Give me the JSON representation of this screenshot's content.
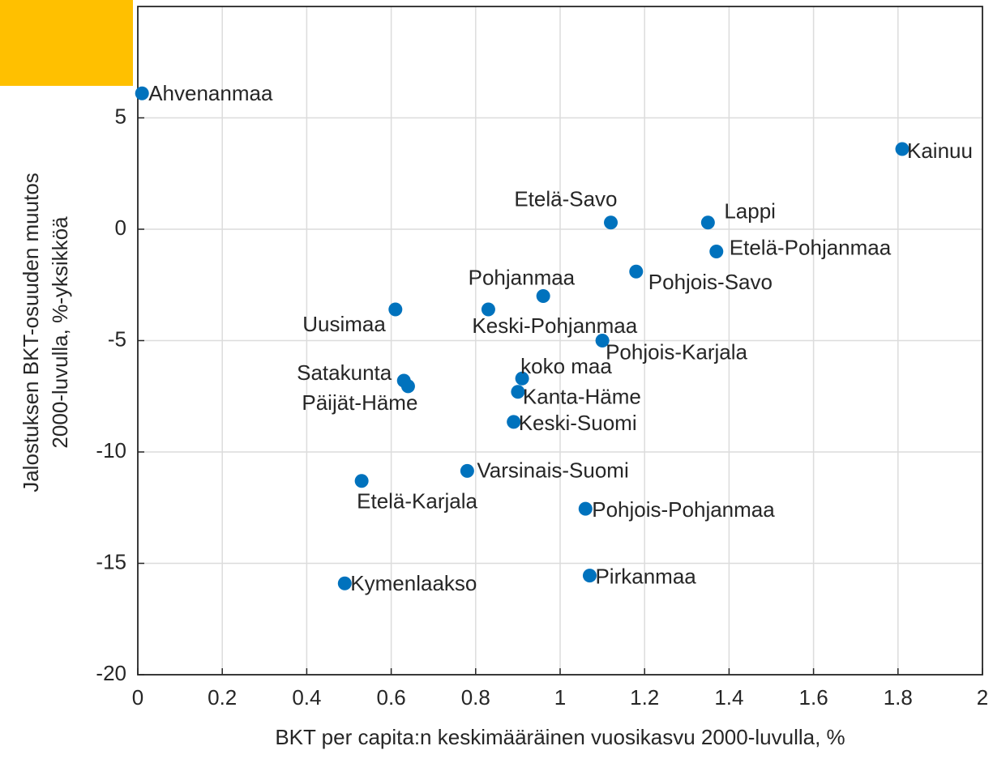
{
  "chart_data": {
    "type": "scatter",
    "xlabel": "BKT per capita:n keskimääräinen vuosikasvu 2000-luvulla, %",
    "ylabel": [
      "Jalostuksen BKT-osuuden muutos",
      "2000-luvulla, %-yksikköä"
    ],
    "xlim": [
      0,
      2
    ],
    "xticks": [
      0,
      0.2,
      0.4,
      0.6,
      0.8,
      1,
      1.2,
      1.4,
      1.6,
      1.8,
      2
    ],
    "ylim": [
      -20,
      10
    ],
    "yticks": [
      -20,
      -15,
      -10,
      -5,
      0,
      5
    ],
    "grid": true,
    "color": "#0072bd",
    "labels": [
      "Ahvenanmaa",
      "Kainuu",
      "Etelä-Savo",
      "Lappi",
      "Etelä-Pohjanmaa",
      "Pohjois-Savo",
      "Pohjanmaa",
      "Keski-Pohjanmaa",
      "Uusimaa",
      "Pohjois-Karjala",
      "koko maa",
      "Satakunta",
      "Päijät-Häme",
      "Kanta-Häme",
      "Keski-Suomi",
      "Varsinais-Suomi",
      "Etelä-Karjala",
      "Pohjois-Pohjanmaa",
      "Pirkanmaa",
      "Kymenlaakso"
    ],
    "x": [
      0.01,
      1.81,
      1.12,
      1.35,
      1.37,
      1.18,
      0.96,
      0.83,
      0.61,
      1.1,
      0.91,
      0.63,
      0.64,
      0.9,
      0.89,
      0.78,
      0.53,
      1.06,
      1.07,
      0.49
    ],
    "values": [
      6.1,
      3.6,
      0.3,
      0.3,
      -1.0,
      -1.9,
      -3.0,
      -3.6,
      -3.6,
      -5.0,
      -6.7,
      -6.8,
      -7.05,
      -7.3,
      -8.65,
      -10.85,
      -11.3,
      -12.55,
      -15.55,
      -15.9
    ]
  }
}
